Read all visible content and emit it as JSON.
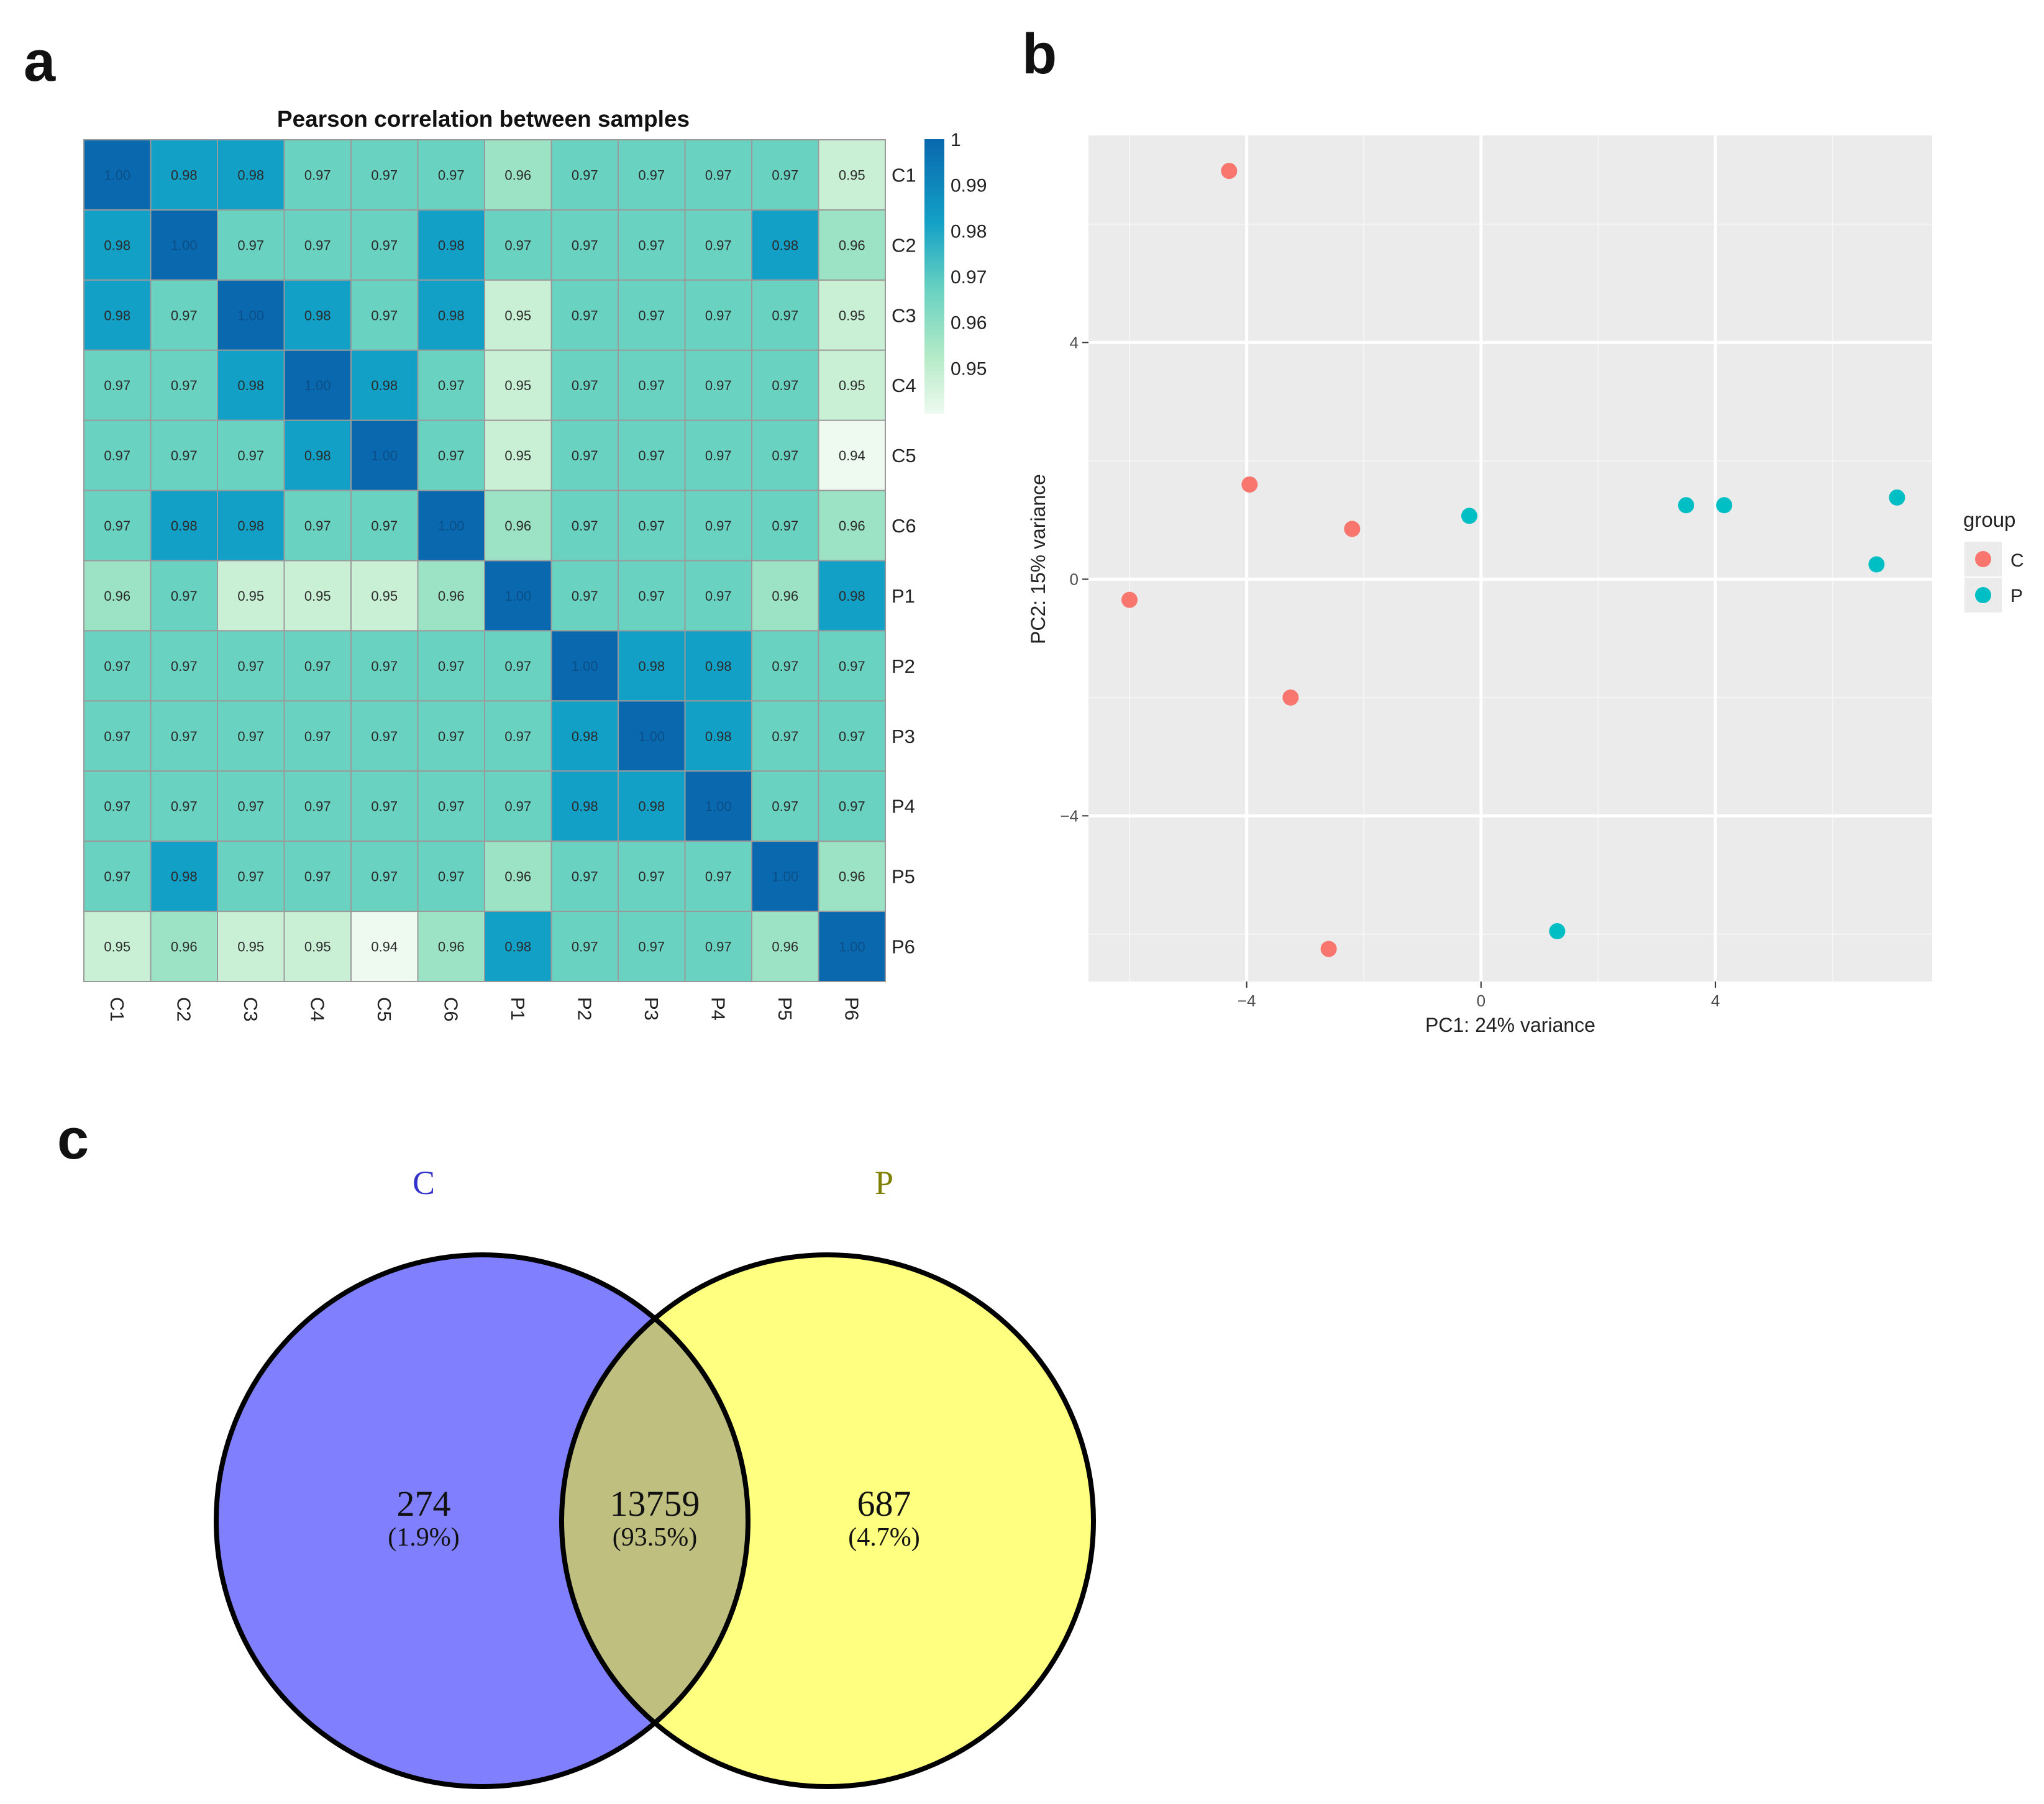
{
  "panels": {
    "a": "a",
    "b": "b",
    "c": "c"
  },
  "colors": {
    "heat_low": "#eefaf0",
    "heat_mid": "#69d2c0",
    "heat_high": "#0a68ae",
    "group_C": "#f8766d",
    "group_P": "#00bfc4",
    "plot_bg": "#ebebeb",
    "venn_C": "#8080ff",
    "venn_P": "#ffff80",
    "venn_overlap": "#bfbf80",
    "venn_C_label": "#3333cc",
    "venn_P_label": "#808000"
  },
  "chart_data": [
    {
      "type": "heatmap",
      "title": "Pearson correlation between samples",
      "row_labels": [
        "C1",
        "C2",
        "C3",
        "C4",
        "C5",
        "C6",
        "P1",
        "P2",
        "P3",
        "P4",
        "P5",
        "P6"
      ],
      "col_labels": [
        "C1",
        "C2",
        "C3",
        "C4",
        "C5",
        "C6",
        "P1",
        "P2",
        "P3",
        "P4",
        "P5",
        "P6"
      ],
      "values": [
        [
          "1.00",
          "0.98",
          "0.98",
          "0.97",
          "0.97",
          "0.97",
          "0.96",
          "0.97",
          "0.97",
          "0.97",
          "0.97",
          "0.95"
        ],
        [
          "0.98",
          "1.00",
          "0.97",
          "0.97",
          "0.97",
          "0.98",
          "0.97",
          "0.97",
          "0.97",
          "0.97",
          "0.98",
          "0.96"
        ],
        [
          "0.98",
          "0.97",
          "1.00",
          "0.98",
          "0.97",
          "0.98",
          "0.95",
          "0.97",
          "0.97",
          "0.97",
          "0.97",
          "0.95"
        ],
        [
          "0.97",
          "0.97",
          "0.98",
          "1.00",
          "0.98",
          "0.97",
          "0.95",
          "0.97",
          "0.97",
          "0.97",
          "0.97",
          "0.95"
        ],
        [
          "0.97",
          "0.97",
          "0.97",
          "0.98",
          "1.00",
          "0.97",
          "0.95",
          "0.97",
          "0.97",
          "0.97",
          "0.97",
          "0.94"
        ],
        [
          "0.97",
          "0.98",
          "0.98",
          "0.97",
          "0.97",
          "1.00",
          "0.96",
          "0.97",
          "0.97",
          "0.97",
          "0.97",
          "0.96"
        ],
        [
          "0.96",
          "0.97",
          "0.95",
          "0.95",
          "0.95",
          "0.96",
          "1.00",
          "0.97",
          "0.97",
          "0.97",
          "0.96",
          "0.98"
        ],
        [
          "0.97",
          "0.97",
          "0.97",
          "0.97",
          "0.97",
          "0.97",
          "0.97",
          "1.00",
          "0.98",
          "0.98",
          "0.97",
          "0.97"
        ],
        [
          "0.97",
          "0.97",
          "0.97",
          "0.97",
          "0.97",
          "0.97",
          "0.97",
          "0.98",
          "1.00",
          "0.98",
          "0.97",
          "0.97"
        ],
        [
          "0.97",
          "0.97",
          "0.97",
          "0.97",
          "0.97",
          "0.97",
          "0.97",
          "0.98",
          "0.98",
          "1.00",
          "0.97",
          "0.97"
        ],
        [
          "0.97",
          "0.98",
          "0.97",
          "0.97",
          "0.97",
          "0.97",
          "0.96",
          "0.97",
          "0.97",
          "0.97",
          "1.00",
          "0.96"
        ],
        [
          "0.95",
          "0.96",
          "0.95",
          "0.95",
          "0.94",
          "0.96",
          "0.98",
          "0.97",
          "0.97",
          "0.97",
          "0.96",
          "1.00"
        ]
      ],
      "color_range": [
        0.94,
        1.0
      ],
      "legend_ticks": [
        "1",
        "0.99",
        "0.98",
        "0.97",
        "0.96",
        "0.95"
      ],
      "legend_tick_values": [
        1.0,
        0.99,
        0.98,
        0.97,
        0.96,
        0.95
      ]
    },
    {
      "type": "scatter",
      "xlabel": "PC1: 24% variance",
      "ylabel": "PC2: 15% variance",
      "xlim": [
        -6.7,
        7.7
      ],
      "ylim": [
        -6.8,
        7.5
      ],
      "x_ticks": [
        -4,
        0,
        4
      ],
      "x_tick_labels": [
        "−4",
        "0",
        "4"
      ],
      "y_ticks": [
        4,
        0,
        -4
      ],
      "y_tick_labels": [
        "4",
        "0",
        "−4"
      ],
      "legend_title": "group",
      "series": [
        {
          "name": "C",
          "points": [
            [
              -4.3,
              6.9
            ],
            [
              -3.95,
              1.6
            ],
            [
              -2.2,
              0.85
            ],
            [
              -6.0,
              -0.35
            ],
            [
              -3.25,
              -2.0
            ],
            [
              -2.6,
              -6.25
            ]
          ]
        },
        {
          "name": "P",
          "points": [
            [
              -0.2,
              1.07
            ],
            [
              3.5,
              1.25
            ],
            [
              4.15,
              1.25
            ],
            [
              7.1,
              1.38
            ],
            [
              6.75,
              0.25
            ],
            [
              1.3,
              -5.95
            ]
          ]
        }
      ]
    },
    {
      "type": "venn",
      "sets": [
        "C",
        "P"
      ],
      "regions": [
        {
          "name": "C only",
          "count": "274",
          "percent": "(1.9%)"
        },
        {
          "name": "C and P",
          "count": "13759",
          "percent": "(93.5%)"
        },
        {
          "name": "P only",
          "count": "687",
          "percent": "(4.7%)"
        }
      ]
    }
  ]
}
